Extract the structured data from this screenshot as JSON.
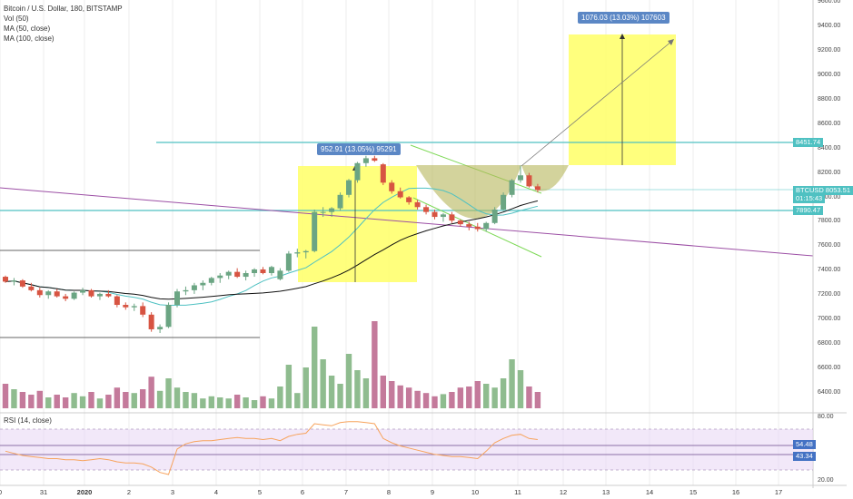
{
  "legend": {
    "title": "Bitcoin / U.S. Dollar, 180, BITSTAMP",
    "vol": "Vol (50)",
    "ma50": "MA (50, close)",
    "ma100": "MA (100, close)"
  },
  "rsi_title": "RSI (14, close)",
  "colors": {
    "up": "#6ba583",
    "down": "#d75442",
    "vol_up": "#8fbc8f",
    "vol_down": "#c47a9b",
    "highlight": "#ffff66",
    "teal": "#4fc1c2",
    "purple": "#9c4fa5",
    "green_line": "#7ed957",
    "olive_fill": "#b5b55a",
    "label_blue": "#5b87c5",
    "rsi_line": "#f7a35c",
    "rsi_band": "#ead8f5"
  },
  "measure_left": {
    "text": "952.91 (13.05%) 95291"
  },
  "measure_right": {
    "text": "1076.03 (13.03%) 107603"
  },
  "price_tags": [
    {
      "name": "level-8451",
      "text": "8451.74",
      "price": 8451.74,
      "color": "#4fc1c2"
    },
    {
      "name": "btcusd",
      "text": "BTCUSD 8053.51",
      "price": 8053.51,
      "color": "#4fc1c2"
    },
    {
      "name": "timer",
      "text": "01:15:43",
      "price": 7990,
      "color": "#4fc1c2"
    },
    {
      "name": "level-7890",
      "text": "7890.47",
      "price": 7890.47,
      "color": "#4fc1c2"
    },
    {
      "name": "rsi-54",
      "text": "54.48",
      "rsi": 54.48,
      "color": "#4472c4"
    },
    {
      "name": "rsi-43",
      "text": "43.34",
      "rsi": 43.34,
      "color": "#4472c4"
    }
  ],
  "chart_data": [
    {
      "type": "candlestick",
      "name": "price",
      "y_axis": {
        "min": 6200,
        "max": 9600,
        "ticks": [
          "9600.00",
          "9400.00",
          "9200.00",
          "9000.00",
          "8800.00",
          "8600.00",
          "8400.00",
          "8200.00",
          "8000.00",
          "7800.00",
          "7600.00",
          "7400.00",
          "7200.00",
          "7000.00",
          "6800.00",
          "6600.00",
          "6400.00"
        ]
      },
      "x_ticks": [
        "0",
        "31",
        "2020",
        "2",
        "3",
        "4",
        "5",
        "6",
        "7",
        "8",
        "9",
        "10",
        "11",
        "12",
        "13",
        "14",
        "15",
        "16",
        "17"
      ],
      "candles": [
        [
          7350,
          7360,
          7300,
          7310
        ],
        [
          7310,
          7340,
          7280,
          7320
        ],
        [
          7320,
          7330,
          7260,
          7270
        ],
        [
          7270,
          7300,
          7230,
          7240
        ],
        [
          7240,
          7260,
          7180,
          7200
        ],
        [
          7200,
          7240,
          7170,
          7230
        ],
        [
          7230,
          7250,
          7180,
          7190
        ],
        [
          7190,
          7210,
          7150,
          7170
        ],
        [
          7170,
          7230,
          7160,
          7220
        ],
        [
          7220,
          7260,
          7200,
          7240
        ],
        [
          7240,
          7250,
          7180,
          7190
        ],
        [
          7190,
          7220,
          7160,
          7210
        ],
        [
          7210,
          7240,
          7180,
          7190
        ],
        [
          7190,
          7200,
          7100,
          7120
        ],
        [
          7120,
          7140,
          7080,
          7100
        ],
        [
          7100,
          7130,
          7070,
          7110
        ],
        [
          7110,
          7140,
          7020,
          7040
        ],
        [
          7040,
          7060,
          6900,
          6920
        ],
        [
          6920,
          6960,
          6890,
          6940
        ],
        [
          6940,
          7140,
          6930,
          7120
        ],
        [
          7120,
          7250,
          7100,
          7230
        ],
        [
          7230,
          7270,
          7200,
          7240
        ],
        [
          7240,
          7300,
          7210,
          7280
        ],
        [
          7280,
          7320,
          7240,
          7300
        ],
        [
          7300,
          7350,
          7280,
          7340
        ],
        [
          7340,
          7380,
          7300,
          7360
        ],
        [
          7360,
          7400,
          7330,
          7390
        ],
        [
          7390,
          7420,
          7340,
          7350
        ],
        [
          7350,
          7400,
          7320,
          7380
        ],
        [
          7380,
          7420,
          7350,
          7410
        ],
        [
          7410,
          7430,
          7370,
          7380
        ],
        [
          7380,
          7440,
          7360,
          7430
        ],
        [
          7330,
          7420,
          7320,
          7400
        ],
        [
          7400,
          7560,
          7390,
          7540
        ],
        [
          7540,
          7580,
          7510,
          7550
        ],
        [
          7550,
          7570,
          7500,
          7560
        ],
        [
          7560,
          7900,
          7550,
          7880
        ],
        [
          7880,
          7920,
          7840,
          7880
        ],
        [
          7880,
          7920,
          7840,
          7910
        ],
        [
          7910,
          8040,
          7890,
          8020
        ],
        [
          8020,
          8150,
          8000,
          8140
        ],
        [
          8140,
          8290,
          8120,
          8280
        ],
        [
          8280,
          8340,
          8250,
          8320
        ],
        [
          8320,
          8340,
          8290,
          8300
        ],
        [
          8270,
          8280,
          8100,
          8120
        ],
        [
          8120,
          8140,
          8030,
          8050
        ],
        [
          8050,
          8080,
          7990,
          8000
        ],
        [
          8000,
          8010,
          7940,
          7960
        ],
        [
          7960,
          7980,
          7900,
          7920
        ],
        [
          7920,
          7940,
          7860,
          7880
        ],
        [
          7880,
          7900,
          7820,
          7840
        ],
        [
          7840,
          7870,
          7800,
          7860
        ],
        [
          7860,
          7880,
          7790,
          7810
        ],
        [
          7810,
          7820,
          7760,
          7780
        ],
        [
          7780,
          7800,
          7730,
          7760
        ],
        [
          7760,
          7790,
          7720,
          7740
        ],
        [
          7740,
          7800,
          7720,
          7790
        ],
        [
          7790,
          7920,
          7780,
          7900
        ],
        [
          7900,
          8040,
          7890,
          8020
        ],
        [
          8020,
          8150,
          8000,
          8140
        ],
        [
          8140,
          8260,
          8120,
          8180
        ],
        [
          8180,
          8200,
          8080,
          8090
        ],
        [
          8090,
          8110,
          8040,
          8060
        ]
      ],
      "volume": [
        45,
        35,
        30,
        25,
        32,
        20,
        25,
        20,
        28,
        22,
        30,
        18,
        25,
        38,
        30,
        28,
        35,
        58,
        32,
        55,
        38,
        30,
        28,
        18,
        22,
        20,
        18,
        25,
        20,
        15,
        22,
        18,
        40,
        80,
        28,
        75,
        150,
        90,
        60,
        45,
        100,
        70,
        55,
        160,
        60,
        50,
        42,
        38,
        32,
        28,
        22,
        26,
        30,
        38,
        40,
        50,
        45,
        38,
        55,
        90,
        70,
        40,
        30
      ]
    },
    {
      "type": "line",
      "name": "RSI (14, close)",
      "y_range": [
        20,
        80
      ],
      "bands": {
        "upper": 70,
        "lower": 30
      },
      "values": [
        48,
        46,
        44,
        43,
        42,
        41,
        41,
        40,
        40,
        39,
        40,
        41,
        40,
        38,
        37,
        37,
        36,
        33,
        28,
        26,
        50,
        55,
        57,
        58,
        58,
        59,
        60,
        61,
        60,
        60,
        59,
        60,
        58,
        62,
        64,
        65,
        74,
        73,
        72,
        75,
        76,
        76,
        75,
        74,
        60,
        56,
        53,
        51,
        49,
        47,
        45,
        44,
        43,
        43,
        42,
        41,
        48,
        56,
        60,
        63,
        64,
        60,
        59
      ]
    }
  ]
}
